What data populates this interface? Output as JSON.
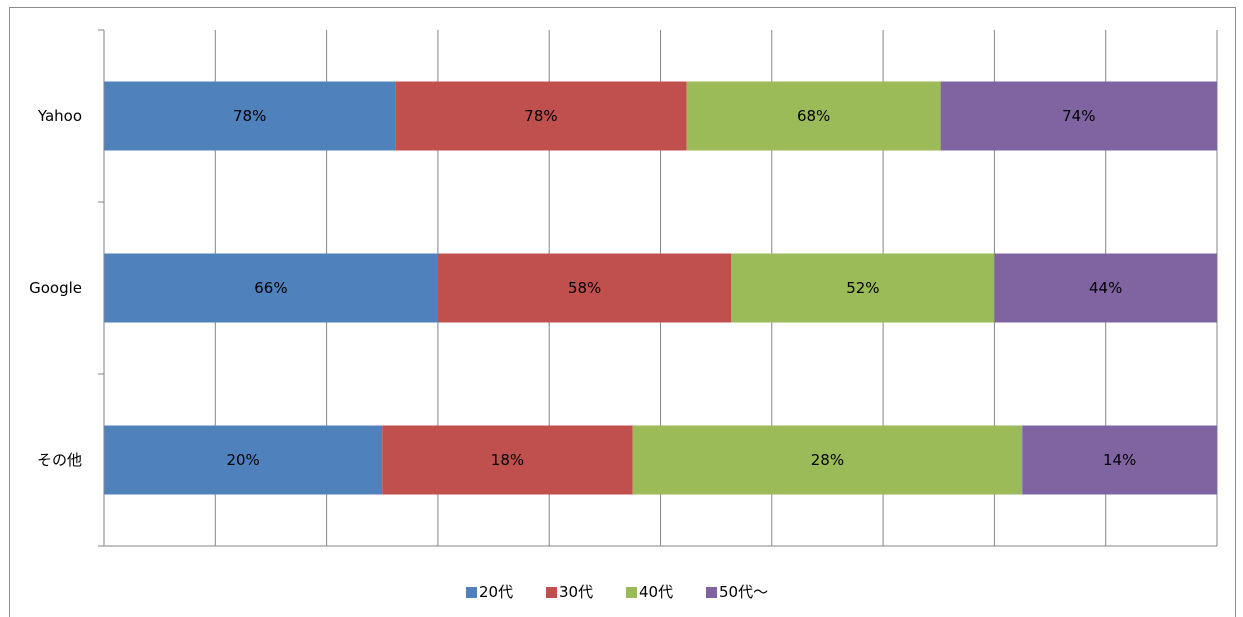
{
  "chart_data": {
    "type": "bar",
    "orientation": "horizontal",
    "stacking": "percent",
    "categories": [
      "Yahoo",
      "Google",
      "その他"
    ],
    "series": [
      {
        "name": "20代",
        "color": "#4F81BD",
        "values": [
          78,
          66,
          20
        ]
      },
      {
        "name": "30代",
        "color": "#C0504D",
        "values": [
          78,
          58,
          18
        ]
      },
      {
        "name": "40代",
        "color": "#9BBB59",
        "values": [
          68,
          52,
          28
        ]
      },
      {
        "name": "50代〜",
        "color": "#8064A2",
        "values": [
          74,
          44,
          14
        ]
      }
    ],
    "value_suffix": "%",
    "grid": true,
    "legend_position": "bottom"
  }
}
